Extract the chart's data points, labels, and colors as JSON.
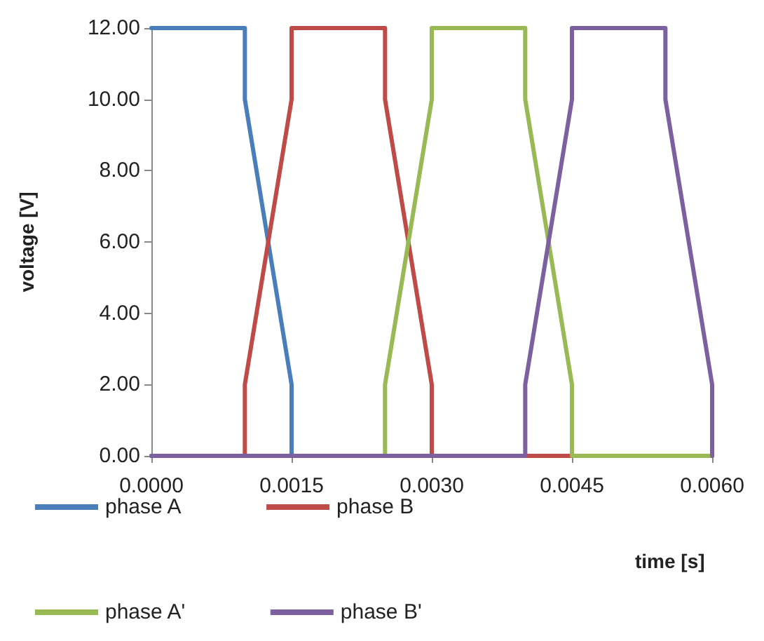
{
  "chart_data": {
    "type": "line",
    "xlabel": "time [s]",
    "ylabel": "voltage [V]",
    "series": [
      {
        "name": "phase A",
        "color": "#4a7ebb",
        "x": [
          0,
          0.001,
          0.001,
          0.0015,
          0.0015,
          0.006
        ],
        "values": [
          12,
          12,
          10,
          2,
          0,
          0
        ]
      },
      {
        "name": "phase B",
        "color": "#be4b48",
        "x": [
          0,
          0.001,
          0.001,
          0.0015,
          0.0015,
          0.0025,
          0.0025,
          0.003,
          0.003,
          0.006
        ],
        "values": [
          0,
          0,
          2,
          10,
          12,
          12,
          10,
          2,
          0,
          0
        ]
      },
      {
        "name": "phase A'",
        "color": "#98b954",
        "x": [
          0,
          0.0025,
          0.0025,
          0.003,
          0.003,
          0.004,
          0.004,
          0.0045,
          0.0045,
          0.006
        ],
        "values": [
          0,
          0,
          2,
          10,
          12,
          12,
          10,
          2,
          0,
          0
        ]
      },
      {
        "name": "phase B'",
        "color": "#7d60a0",
        "x": [
          0,
          0.004,
          0.004,
          0.0045,
          0.0045,
          0.0055,
          0.0055,
          0.006,
          0.006
        ],
        "values": [
          0,
          0,
          2,
          10,
          12,
          12,
          10,
          2,
          0
        ]
      }
    ],
    "xlim": [
      0,
      0.006
    ],
    "xticks": [
      {
        "value": 0,
        "label": "0.0000"
      },
      {
        "value": 0.0015,
        "label": "0.0015"
      },
      {
        "value": 0.003,
        "label": "0.0030"
      },
      {
        "value": 0.0045,
        "label": "0.0045"
      },
      {
        "value": 0.006,
        "label": "0.0060"
      }
    ],
    "ylim": [
      0,
      12
    ],
    "yticks": [
      {
        "value": 0,
        "label": "0.00"
      },
      {
        "value": 2,
        "label": "2.00"
      },
      {
        "value": 4,
        "label": "4.00"
      },
      {
        "value": 6,
        "label": "6.00"
      },
      {
        "value": 8,
        "label": "8.00"
      },
      {
        "value": 10,
        "label": "10.00"
      },
      {
        "value": 12,
        "label": "12.00"
      }
    ],
    "grid": false,
    "legend": "bottom",
    "marker": "none",
    "line_style": "solid"
  }
}
